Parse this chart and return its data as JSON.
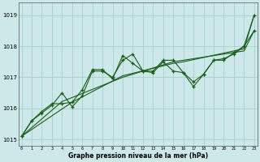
{
  "title": "Graphe pression niveau de la mer (hPa)",
  "bg_color": "#cce8e8",
  "grid_color": "#aacece",
  "line_color": "#1a5c1a",
  "x_ticks": [
    0,
    1,
    2,
    3,
    4,
    5,
    6,
    7,
    8,
    9,
    10,
    11,
    12,
    13,
    14,
    15,
    16,
    17,
    18,
    19,
    20,
    21,
    22,
    23
  ],
  "ylim": [
    1014.8,
    1019.4
  ],
  "yticks": [
    1015,
    1016,
    1017,
    1018,
    1019
  ],
  "line1": [
    1015.1,
    1015.6,
    1015.85,
    1016.1,
    1016.5,
    1016.05,
    1016.4,
    1017.2,
    1017.2,
    1017.0,
    1017.55,
    1017.75,
    1017.2,
    1017.2,
    1017.55,
    1017.55,
    1017.15,
    1016.85,
    1017.1,
    1017.55,
    1017.55,
    1017.8,
    1018.0,
    1019.0
  ],
  "line2": [
    1015.1,
    1015.6,
    1015.9,
    1016.15,
    1016.15,
    1016.2,
    1016.6,
    1017.25,
    1017.25,
    1016.95,
    1017.7,
    1017.45,
    1017.2,
    1017.15,
    1017.5,
    1017.2,
    1017.15,
    1016.7,
    1017.1,
    1017.55,
    1017.6,
    1017.75,
    1018.0,
    1018.5
  ],
  "line3_straight": [
    1015.1,
    1015.38,
    1015.66,
    1015.94,
    1016.22,
    1016.35,
    1016.48,
    1016.61,
    1016.74,
    1016.87,
    1017.0,
    1017.1,
    1017.2,
    1017.3,
    1017.4,
    1017.5,
    1017.55,
    1017.6,
    1017.65,
    1017.7,
    1017.75,
    1017.8,
    1017.85,
    1018.5
  ],
  "line4_straight": [
    1015.1,
    1015.32,
    1015.54,
    1015.76,
    1015.98,
    1016.2,
    1016.37,
    1016.54,
    1016.71,
    1016.88,
    1017.05,
    1017.13,
    1017.21,
    1017.29,
    1017.37,
    1017.45,
    1017.5,
    1017.57,
    1017.64,
    1017.71,
    1017.78,
    1017.85,
    1017.92,
    1019.0
  ]
}
